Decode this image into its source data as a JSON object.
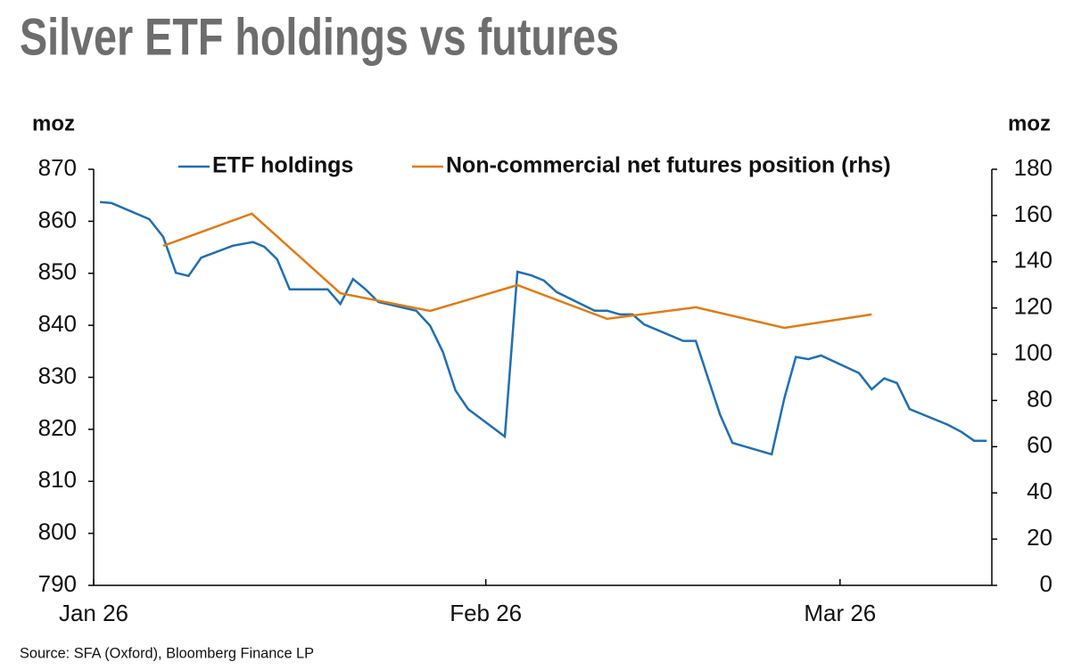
{
  "chart_data": {
    "type": "line",
    "title": "Silver ETF holdings vs futures",
    "y_label": "moz",
    "y2_label": "moz",
    "source": "Source: SFA (Oxford), Bloomberg Finance LP",
    "xlim": [
      0,
      71
    ],
    "xticks": [
      {
        "value": 0,
        "label": "Jan 26"
      },
      {
        "value": 31,
        "label": "Feb 26"
      },
      {
        "value": 59,
        "label": "Mar 26"
      }
    ],
    "ylim": [
      790,
      870
    ],
    "yticks": [
      790,
      800,
      810,
      820,
      830,
      840,
      850,
      860,
      870
    ],
    "y2lim": [
      0,
      180
    ],
    "y2ticks": [
      0,
      20,
      40,
      60,
      80,
      100,
      120,
      140,
      160,
      180
    ],
    "legend": "top",
    "series": [
      {
        "name": "ETF holdings",
        "color": "#1f6fb2",
        "x": [
          0.5,
          1.4,
          4.4,
          5.5,
          6.5,
          7.5,
          8.5,
          11,
          12.6,
          13.5,
          14.5,
          15.5,
          18.5,
          19.5,
          20.5,
          21.5,
          22.5,
          25.5,
          26.6,
          27.6,
          28.6,
          29.6,
          32.5,
          33.5,
          34.6,
          35.6,
          36.6,
          39.6,
          40.6,
          41.6,
          42.6,
          43.5,
          46.6,
          47.6,
          49.5,
          50.5,
          53.6,
          54.6,
          55.5,
          56.5,
          57.5,
          60.5,
          61.5,
          62.5,
          63.5,
          64.5,
          67.5,
          68.6,
          69.6,
          70.6
        ],
        "values": [
          863.7,
          863.5,
          860.4,
          857.0,
          850.1,
          849.5,
          853.0,
          855.3,
          856.0,
          855.1,
          852.7,
          846.9,
          846.9,
          844.1,
          848.9,
          846.9,
          844.5,
          842.8,
          839.9,
          834.9,
          827.5,
          823.9,
          818.6,
          850.3,
          849.6,
          848.6,
          846.4,
          842.8,
          842.8,
          842.1,
          842.1,
          840.2,
          837.0,
          837.0,
          822.9,
          817.4,
          815.2,
          826.0,
          833.9,
          833.5,
          834.2,
          830.8,
          827.7,
          829.8,
          828.9,
          823.9,
          820.9,
          819.5,
          817.8,
          817.8
        ]
      },
      {
        "name": "Non-commercial net futures position (rhs)",
        "color": "#e07b12",
        "axis": "y2",
        "x": [
          5.5,
          12.5,
          19.5,
          26.6,
          33.5,
          40.6,
          47.6,
          54.6,
          61.5
        ],
        "values": [
          146.9,
          160.8,
          126.4,
          118.7,
          129.9,
          115.3,
          120.3,
          111.4,
          117.2
        ]
      }
    ]
  }
}
